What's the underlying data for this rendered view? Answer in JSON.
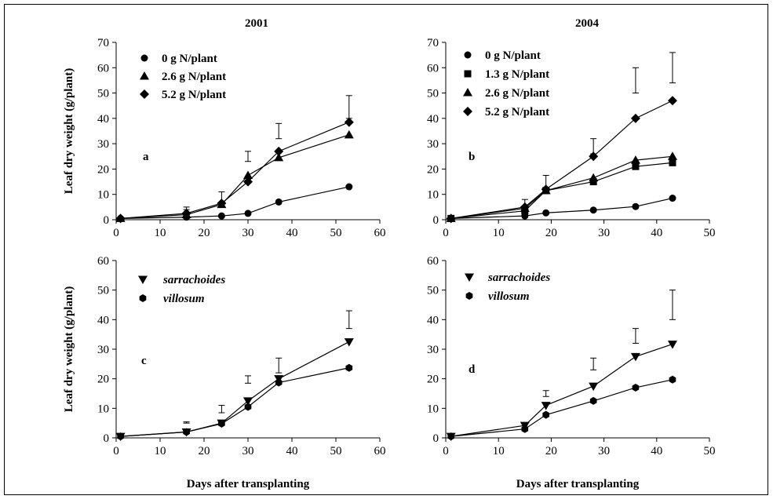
{
  "chart_data": [
    {
      "id": "a",
      "type": "line",
      "title": "2001",
      "panel_label": "a",
      "ylabel": "Leaf dry weight (g/plant)",
      "xlabel": "",
      "xlim": [
        0,
        60
      ],
      "ylim": [
        0,
        70
      ],
      "xticks": [
        0,
        10,
        20,
        30,
        40,
        50,
        60
      ],
      "yticks": [
        0,
        10,
        20,
        30,
        40,
        50,
        60,
        70
      ],
      "legend_placement": "top-left",
      "series": [
        {
          "name": "0 g N/plant",
          "marker": "circle",
          "points": [
            [
              1,
              0.5
            ],
            [
              16,
              1
            ],
            [
              24,
              1.5
            ],
            [
              30,
              2.5
            ],
            [
              37,
              7
            ],
            [
              53,
              13
            ]
          ]
        },
        {
          "name": "2.6 g N/plant",
          "marker": "triangle",
          "points": [
            [
              1,
              0.5
            ],
            [
              16,
              2
            ],
            [
              24,
              6
            ],
            [
              30,
              17.5
            ],
            [
              37,
              24.5
            ],
            [
              53,
              33.5
            ]
          ]
        },
        {
          "name": "5.2 g N/plant",
          "marker": "diamond",
          "points": [
            [
              1,
              0.5
            ],
            [
              16,
              2.5
            ],
            [
              24,
              6.5
            ],
            [
              30,
              15
            ],
            [
              37,
              27
            ],
            [
              53,
              38.5
            ]
          ]
        }
      ],
      "error_bars": [
        [
          16,
          4,
          5
        ],
        [
          24,
          7,
          11
        ],
        [
          30,
          23,
          27
        ],
        [
          37,
          32,
          38
        ],
        [
          53,
          40,
          49
        ]
      ]
    },
    {
      "id": "b",
      "type": "line",
      "title": "2004",
      "panel_label": "b",
      "ylabel": "",
      "xlabel": "",
      "xlim": [
        0,
        50
      ],
      "ylim": [
        0,
        70
      ],
      "xticks": [
        0,
        10,
        20,
        30,
        40,
        50
      ],
      "yticks": [
        0,
        10,
        20,
        30,
        40,
        50,
        60,
        70
      ],
      "legend_placement": "top-left",
      "series": [
        {
          "name": "0 g N/plant",
          "marker": "circle",
          "points": [
            [
              1,
              0.5
            ],
            [
              15,
              1.5
            ],
            [
              19,
              2.7
            ],
            [
              28,
              3.8
            ],
            [
              36,
              5.2
            ],
            [
              43,
              8.5
            ]
          ]
        },
        {
          "name": "1.3 g N/plant",
          "marker": "square",
          "points": [
            [
              1,
              0.5
            ],
            [
              15,
              3.5
            ],
            [
              19,
              11.5
            ],
            [
              28,
              15
            ],
            [
              36,
              21
            ],
            [
              43,
              22.5
            ]
          ]
        },
        {
          "name": "2.6 g N/plant",
          "marker": "triangle",
          "points": [
            [
              1,
              0.5
            ],
            [
              15,
              4.5
            ],
            [
              19,
              11.5
            ],
            [
              28,
              16.5
            ],
            [
              36,
              23.5
            ],
            [
              43,
              25
            ]
          ]
        },
        {
          "name": "5.2 g N/plant",
          "marker": "diamond",
          "points": [
            [
              1,
              0.5
            ],
            [
              15,
              5
            ],
            [
              19,
              12
            ],
            [
              28,
              25
            ],
            [
              36,
              40
            ],
            [
              43,
              47
            ]
          ]
        }
      ],
      "error_bars": [
        [
          15,
          4,
          8
        ],
        [
          19,
          11,
          17.5
        ],
        [
          28,
          26,
          32
        ],
        [
          36,
          50,
          60
        ],
        [
          43,
          54,
          66
        ]
      ]
    },
    {
      "id": "c",
      "type": "line",
      "title": "",
      "panel_label": "c",
      "ylabel": "Leaf dry weight (g/plant)",
      "xlabel": "Days after transplanting",
      "xlim": [
        0,
        60
      ],
      "ylim": [
        0,
        60
      ],
      "xticks": [
        0,
        10,
        20,
        30,
        40,
        50,
        60
      ],
      "yticks": [
        0,
        10,
        20,
        30,
        40,
        50,
        60
      ],
      "legend_placement": "top-left",
      "series": [
        {
          "name": "sarrachoides",
          "marker": "triangle-down",
          "points": [
            [
              1,
              0.5
            ],
            [
              16,
              2
            ],
            [
              24,
              5
            ],
            [
              30,
              12.5
            ],
            [
              37,
              20
            ],
            [
              53,
              32.5
            ]
          ]
        },
        {
          "name": "villosum",
          "marker": "hexagon",
          "points": [
            [
              1,
              0.5
            ],
            [
              16,
              2
            ],
            [
              24,
              4.8
            ],
            [
              30,
              10.5
            ],
            [
              37,
              18.7
            ],
            [
              53,
              23.7
            ]
          ]
        }
      ],
      "error_bars": [
        [
          16,
          5,
          5.4
        ],
        [
          24,
          8.5,
          11
        ],
        [
          30,
          18.5,
          21
        ],
        [
          37,
          22,
          27
        ],
        [
          53,
          37,
          43
        ]
      ]
    },
    {
      "id": "d",
      "type": "line",
      "title": "",
      "panel_label": "d",
      "ylabel": "",
      "xlabel": "Days after transplanting",
      "xlim": [
        0,
        50
      ],
      "ylim": [
        0,
        60
      ],
      "xticks": [
        0,
        10,
        20,
        30,
        40,
        50
      ],
      "yticks": [
        0,
        10,
        20,
        30,
        40,
        50,
        60
      ],
      "legend_placement": "top-left",
      "series": [
        {
          "name": "sarrachoides",
          "marker": "triangle-down",
          "points": [
            [
              1,
              0.5
            ],
            [
              15,
              4.2
            ],
            [
              19,
              11
            ],
            [
              28,
              17.5
            ],
            [
              36,
              27.5
            ],
            [
              43,
              31.7
            ]
          ]
        },
        {
          "name": "villosum",
          "marker": "hexagon",
          "points": [
            [
              1,
              0.5
            ],
            [
              15,
              3
            ],
            [
              19,
              7.8
            ],
            [
              28,
              12.5
            ],
            [
              36,
              17
            ],
            [
              43,
              19.7
            ]
          ]
        }
      ],
      "error_bars": [
        [
          15,
          3,
          5
        ],
        [
          19,
          14,
          16
        ],
        [
          28,
          23,
          27
        ],
        [
          36,
          32,
          37
        ],
        [
          43,
          40,
          50
        ]
      ]
    }
  ]
}
